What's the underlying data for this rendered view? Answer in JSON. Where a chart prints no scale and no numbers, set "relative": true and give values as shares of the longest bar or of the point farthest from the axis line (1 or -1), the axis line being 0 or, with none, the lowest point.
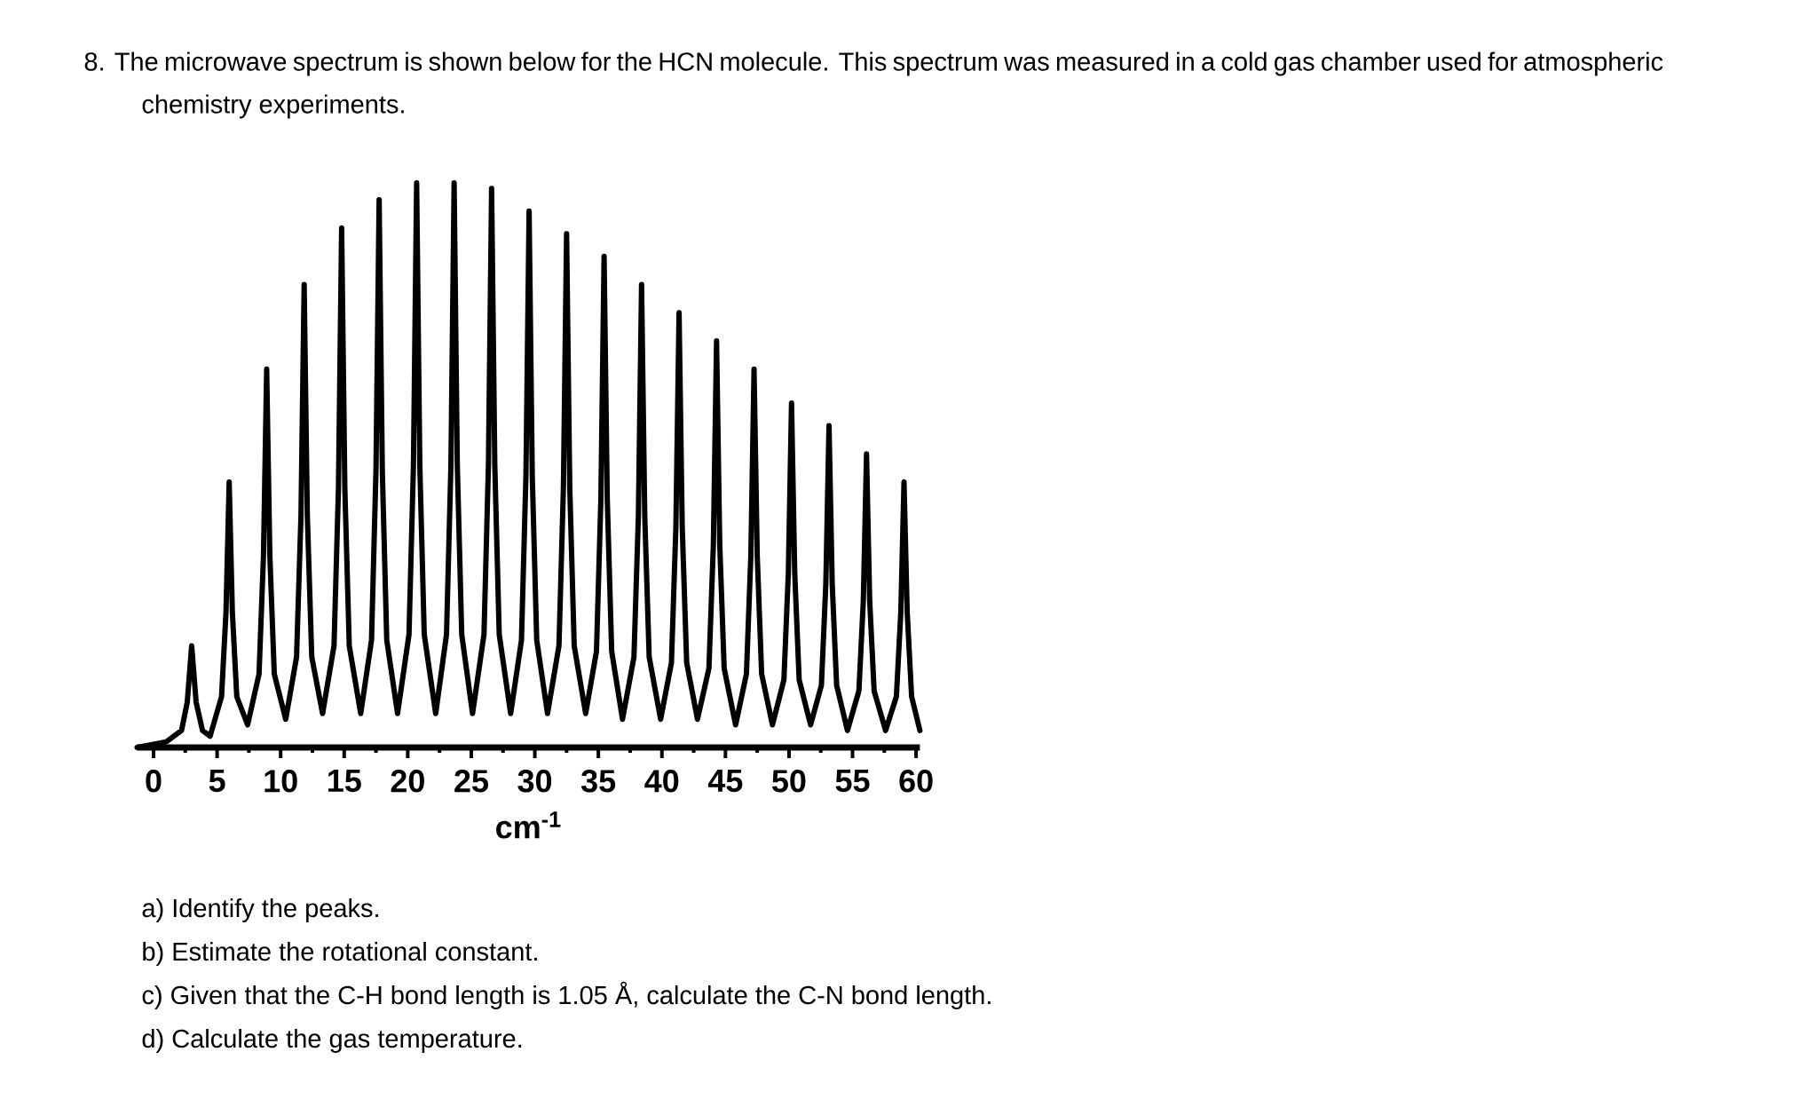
{
  "chart_data": {
    "type": "line",
    "relative": true,
    "color": "#000000",
    "tick_labels": "x",
    "title": "8. The microwave spectrum is shown below for the HCN molecule. This spectrum was measured in a cold gas chamber used for atmospheric chemistry experiments.",
    "xlabel": "cm$^{-1}$",
    "annotations": [
      "a) Identify the peaks.",
      "b) Estimate the rotational constant.",
      "c) Given that the C-H bond length is 1.05 Å, calculate the C-N bond length.",
      "d) Calculate the gas temperature."
    ],
    "xlim": [
      -1.3,
      60.3
    ],
    "xticks": [
      0,
      5,
      10,
      15,
      20,
      25,
      30,
      35,
      40,
      45,
      50,
      55,
      60
    ],
    "x": [
      -1.3,
      1.0,
      2.2,
      2.65,
      3.0,
      3.35,
      3.85,
      4.45,
      5.35,
      5.7,
      5.95,
      6.2,
      6.55,
      7.4,
      8.3,
      8.65,
      8.9,
      9.15,
      9.5,
      10.4,
      11.25,
      11.6,
      11.85,
      12.1,
      12.45,
      13.3,
      14.2,
      14.55,
      14.8,
      15.05,
      15.4,
      16.3,
      17.15,
      17.5,
      17.75,
      18.0,
      18.35,
      19.2,
      20.1,
      20.45,
      20.7,
      20.95,
      21.3,
      22.2,
      23.05,
      23.4,
      23.65,
      23.9,
      24.25,
      25.1,
      26.0,
      26.35,
      26.6,
      26.85,
      27.2,
      28.1,
      28.95,
      29.3,
      29.55,
      29.8,
      30.15,
      31.0,
      31.9,
      32.25,
      32.5,
      32.75,
      33.1,
      34.0,
      34.85,
      35.2,
      35.45,
      35.7,
      36.05,
      36.9,
      37.8,
      38.15,
      38.4,
      38.65,
      39.0,
      39.9,
      40.75,
      41.1,
      41.35,
      41.6,
      41.95,
      42.8,
      43.7,
      44.05,
      44.3,
      44.55,
      44.9,
      45.8,
      46.65,
      47.0,
      47.25,
      47.5,
      47.85,
      48.7,
      49.6,
      49.95,
      50.2,
      50.45,
      50.8,
      51.7,
      52.55,
      52.9,
      53.15,
      53.4,
      53.75,
      54.6,
      55.5,
      55.85,
      56.1,
      56.35,
      56.7,
      57.6,
      58.45,
      58.8,
      59.05,
      59.3,
      59.65,
      60.3
    ],
    "values": [
      0,
      0.01,
      0.03,
      0.08,
      0.18,
      0.08,
      0.03,
      0.02,
      0.09,
      0.24,
      0.47,
      0.24,
      0.09,
      0.04,
      0.13,
      0.34,
      0.67,
      0.34,
      0.13,
      0.05,
      0.16,
      0.41,
      0.82,
      0.41,
      0.16,
      0.06,
      0.18,
      0.46,
      0.92,
      0.46,
      0.18,
      0.06,
      0.19,
      0.49,
      0.97,
      0.49,
      0.19,
      0.06,
      0.2,
      0.5,
      1.0,
      0.5,
      0.2,
      0.06,
      0.2,
      0.5,
      1.0,
      0.5,
      0.2,
      0.06,
      0.2,
      0.5,
      0.99,
      0.5,
      0.2,
      0.06,
      0.19,
      0.48,
      0.95,
      0.48,
      0.19,
      0.06,
      0.18,
      0.46,
      0.91,
      0.46,
      0.18,
      0.06,
      0.17,
      0.44,
      0.87,
      0.44,
      0.17,
      0.05,
      0.16,
      0.41,
      0.82,
      0.41,
      0.16,
      0.05,
      0.15,
      0.39,
      0.77,
      0.39,
      0.15,
      0.05,
      0.14,
      0.36,
      0.72,
      0.36,
      0.14,
      0.04,
      0.13,
      0.34,
      0.67,
      0.34,
      0.13,
      0.04,
      0.12,
      0.31,
      0.61,
      0.31,
      0.12,
      0.04,
      0.11,
      0.29,
      0.57,
      0.29,
      0.11,
      0.03,
      0.1,
      0.26,
      0.52,
      0.26,
      0.1,
      0.03,
      0.09,
      0.24,
      0.47,
      0.24,
      0.09,
      0.03
    ]
  }
}
